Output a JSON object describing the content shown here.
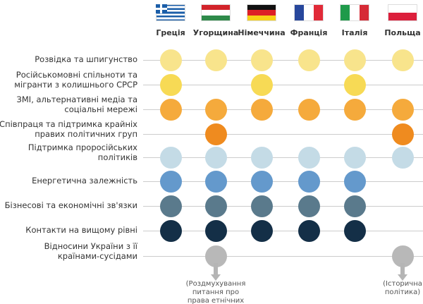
{
  "countries": [
    {
      "name": "Греція",
      "flag": "greece"
    },
    {
      "name": "Угорщина",
      "flag": "hungary"
    },
    {
      "name": "Німеччина",
      "flag": "germany"
    },
    {
      "name": "Франція",
      "flag": "france"
    },
    {
      "name": "Італія",
      "flag": "italy"
    },
    {
      "name": "Польща",
      "flag": "poland"
    }
  ],
  "rows": [
    {
      "label": "Розвідка та шпигунство",
      "color": "#f8e48c",
      "present": [
        1,
        1,
        1,
        1,
        1,
        1
      ]
    },
    {
      "label": "Російськомовні спільноти та\nмігранти з колишнього СРСР",
      "color": "#f7da55",
      "present": [
        1,
        0,
        1,
        0,
        1,
        0
      ]
    },
    {
      "label": "ЗМІ, альтернативні медіа та\nсоціальні мережі",
      "color": "#f5aa3c",
      "present": [
        1,
        1,
        1,
        1,
        1,
        1
      ]
    },
    {
      "label": "Співпраця та підтримка крайніх\nправих політичних груп",
      "color": "#ef8b1f",
      "present": [
        0,
        1,
        0,
        0,
        0,
        1
      ]
    },
    {
      "label": "Підтримка проросійських\nполітиків",
      "color": "#c4dbe6",
      "present": [
        1,
        1,
        1,
        1,
        1,
        1
      ]
    },
    {
      "label": "Енергетична залежність",
      "color": "#6499cc",
      "present": [
        1,
        1,
        1,
        1,
        1,
        0
      ]
    },
    {
      "label": "Бізнесові та економічні зв'язки",
      "color": "#5a7a8c",
      "present": [
        1,
        1,
        1,
        1,
        1,
        0
      ]
    },
    {
      "label": "Контакти на вищому рівні",
      "color": "#142f47",
      "present": [
        1,
        1,
        1,
        1,
        1,
        0
      ]
    },
    {
      "label": "Відносини України з її\nкраїнами-сусідами",
      "color": "#b8b8b8",
      "present": [
        0,
        1,
        0,
        0,
        0,
        1
      ]
    }
  ],
  "notes": [
    {
      "country_index": 1,
      "text": "(Роздмухування\nпитання про\nправа етнічних"
    },
    {
      "country_index": 5,
      "text": "(Історична\nполітика)"
    }
  ]
}
